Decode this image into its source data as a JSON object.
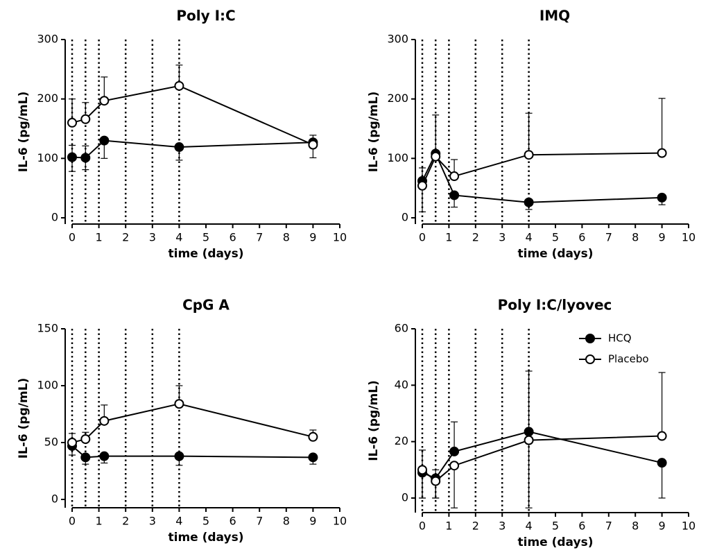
{
  "legend": {
    "position": "top-right of Poly I:C/lyovec panel",
    "entries": [
      {
        "label": "HCQ",
        "marker": "filled-circle"
      },
      {
        "label": "Placebo",
        "marker": "open-circle"
      }
    ]
  },
  "chart_data": [
    {
      "type": "line",
      "title": "Poly I:C",
      "xlabel": "time (days)",
      "ylabel": "IL-6 (pg/mL)",
      "xlim": [
        0,
        10
      ],
      "ylim": [
        0,
        300
      ],
      "xticks": [
        "0",
        "1",
        "2",
        "3",
        "4",
        "5",
        "6",
        "7",
        "8",
        "9",
        "10"
      ],
      "yticks": [
        "0",
        "100",
        "200",
        "300"
      ],
      "vlines": [
        0,
        0.5,
        1,
        2,
        3,
        4
      ],
      "series": [
        {
          "name": "HCQ",
          "marker": "filled",
          "x": [
            0,
            0.5,
            1.2,
            4,
            9
          ],
          "y": [
            102,
            101,
            130,
            119,
            127
          ],
          "err_up": [
            20,
            20,
            0,
            0,
            12
          ],
          "err_down": [
            24,
            20,
            30,
            22,
            0
          ]
        },
        {
          "name": "Placebo",
          "marker": "open",
          "x": [
            0,
            0.5,
            1.2,
            4,
            9
          ],
          "y": [
            160,
            166,
            197,
            222,
            123
          ],
          "err_up": [
            40,
            28,
            40,
            35,
            0
          ],
          "err_down": [
            0,
            0,
            0,
            0,
            22
          ]
        }
      ]
    },
    {
      "type": "line",
      "title": "IMQ",
      "xlabel": "time (days)",
      "ylabel": "IL-6 (pg/mL)",
      "xlim": [
        0,
        10
      ],
      "ylim": [
        0,
        300
      ],
      "xticks": [
        "0",
        "1",
        "2",
        "3",
        "4",
        "5",
        "6",
        "7",
        "8",
        "9",
        "10"
      ],
      "yticks": [
        "0",
        "100",
        "200",
        "300"
      ],
      "vlines": [
        0,
        0.5,
        1,
        2,
        3,
        4
      ],
      "series": [
        {
          "name": "HCQ",
          "marker": "filled",
          "x": [
            0,
            0.5,
            1.2,
            4,
            9
          ],
          "y": [
            62,
            108,
            38,
            26,
            34
          ],
          "err_up": [
            0,
            0,
            0,
            0,
            0
          ],
          "err_down": [
            0,
            0,
            20,
            12,
            12
          ]
        },
        {
          "name": "Placebo",
          "marker": "open",
          "x": [
            0,
            0.5,
            1.2,
            4,
            9
          ],
          "y": [
            54,
            103,
            70,
            106,
            109
          ],
          "err_up": [
            30,
            70,
            28,
            70,
            92
          ],
          "err_down": [
            44,
            0,
            0,
            0,
            0
          ]
        }
      ]
    },
    {
      "type": "line",
      "title": "CpG A",
      "xlabel": "time (days)",
      "ylabel": "IL-6 (pg/mL)",
      "xlim": [
        0,
        10
      ],
      "ylim": [
        0,
        150
      ],
      "xticks": [
        "0",
        "1",
        "2",
        "3",
        "4",
        "5",
        "6",
        "7",
        "8",
        "9",
        "10"
      ],
      "yticks": [
        "0",
        "50",
        "100",
        "150"
      ],
      "vlines": [
        0,
        0.5,
        1,
        2,
        3,
        4
      ],
      "series": [
        {
          "name": "HCQ",
          "marker": "filled",
          "x": [
            0,
            0.5,
            1.2,
            4,
            9
          ],
          "y": [
            47,
            37,
            38,
            38,
            37
          ],
          "err_up": [
            0,
            0,
            0,
            0,
            0
          ],
          "err_down": [
            8,
            6,
            6,
            8,
            6
          ]
        },
        {
          "name": "Placebo",
          "marker": "open",
          "x": [
            0,
            0.5,
            1.2,
            4,
            9
          ],
          "y": [
            50,
            53,
            69,
            84,
            55
          ],
          "err_up": [
            8,
            6,
            14,
            16,
            6
          ],
          "err_down": [
            0,
            0,
            0,
            0,
            0
          ]
        }
      ]
    },
    {
      "type": "line",
      "title": "Poly I:C/lyovec",
      "xlabel": "time (days)",
      "ylabel": "IL-6 (pg/mL)",
      "xlim": [
        0,
        10
      ],
      "ylim": [
        -5,
        60
      ],
      "xticks": [
        "0",
        "1",
        "2",
        "3",
        "4",
        "5",
        "6",
        "7",
        "8",
        "9",
        "10"
      ],
      "yticks": [
        "0",
        "20",
        "40",
        "60"
      ],
      "vlines": [
        0,
        0.5,
        1,
        2,
        3,
        4
      ],
      "series": [
        {
          "name": "HCQ",
          "marker": "filled",
          "x": [
            0,
            0.5,
            1.2,
            4,
            9
          ],
          "y": [
            9,
            7,
            16.5,
            23.5,
            12.5
          ],
          "err_up": [
            8,
            3,
            10.5,
            21.5,
            0
          ],
          "err_down": [
            9,
            7,
            0,
            0,
            12.5
          ]
        },
        {
          "name": "Placebo",
          "marker": "open",
          "x": [
            0,
            0.5,
            1.2,
            4,
            9
          ],
          "y": [
            10,
            6,
            11.5,
            20.5,
            22
          ],
          "err_up": [
            0,
            0,
            0,
            0,
            22.5
          ],
          "err_down": [
            10,
            6,
            15,
            24,
            0
          ]
        }
      ]
    }
  ]
}
